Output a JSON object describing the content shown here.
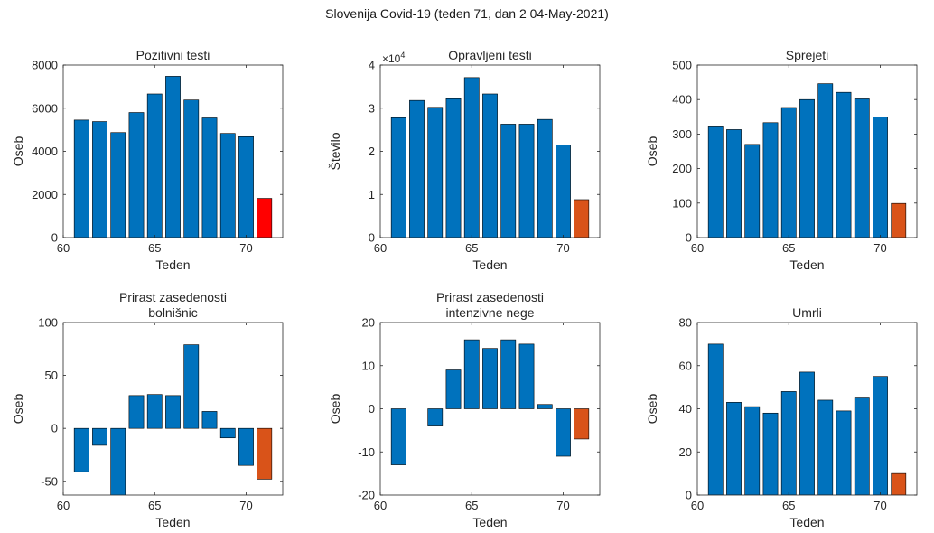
{
  "suptitle": "Slovenija Covid-19 (teden 71, dan 2 04-May-2021)",
  "colors": {
    "blue": "#0072BD",
    "orange": "#D95319",
    "red": "#FF0000",
    "axis": "#262626"
  },
  "chart_data": [
    {
      "type": "bar",
      "title": [
        "Pozitivni testi"
      ],
      "xlabel": "Teden",
      "ylabel": "Oseb",
      "x": [
        61,
        62,
        63,
        64,
        65,
        66,
        67,
        68,
        69,
        70,
        71
      ],
      "values": [
        5450,
        5380,
        4870,
        5800,
        6660,
        7480,
        6380,
        5550,
        4830,
        4680,
        1820
      ],
      "bar_colors": [
        "#0072BD",
        "#0072BD",
        "#0072BD",
        "#0072BD",
        "#0072BD",
        "#0072BD",
        "#0072BD",
        "#0072BD",
        "#0072BD",
        "#0072BD",
        "#FF0000"
      ],
      "xlim": [
        60,
        72
      ],
      "ylim": [
        0,
        8000
      ],
      "xticks": [
        60,
        65,
        70
      ],
      "yticks": [
        0,
        2000,
        4000,
        6000,
        8000
      ]
    },
    {
      "type": "bar",
      "title": [
        "Opravljeni testi"
      ],
      "xlabel": "Teden",
      "ylabel": "Število",
      "exponent": "10",
      "exponent_power": "4",
      "x": [
        61,
        62,
        63,
        64,
        65,
        66,
        67,
        68,
        69,
        70,
        71
      ],
      "values": [
        2.78,
        3.18,
        3.02,
        3.22,
        3.71,
        3.33,
        2.63,
        2.63,
        2.74,
        2.15,
        0.88
      ],
      "bar_colors": [
        "#0072BD",
        "#0072BD",
        "#0072BD",
        "#0072BD",
        "#0072BD",
        "#0072BD",
        "#0072BD",
        "#0072BD",
        "#0072BD",
        "#0072BD",
        "#D95319"
      ],
      "xlim": [
        60,
        72
      ],
      "ylim": [
        0,
        4
      ],
      "xticks": [
        60,
        65,
        70
      ],
      "yticks": [
        0,
        1,
        2,
        3,
        4
      ]
    },
    {
      "type": "bar",
      "title": [
        "Sprejeti"
      ],
      "xlabel": "Teden",
      "ylabel": "Oseb",
      "x": [
        61,
        62,
        63,
        64,
        65,
        66,
        67,
        68,
        69,
        70,
        71
      ],
      "values": [
        321,
        313,
        270,
        333,
        377,
        400,
        446,
        421,
        402,
        349,
        99
      ],
      "bar_colors": [
        "#0072BD",
        "#0072BD",
        "#0072BD",
        "#0072BD",
        "#0072BD",
        "#0072BD",
        "#0072BD",
        "#0072BD",
        "#0072BD",
        "#0072BD",
        "#D95319"
      ],
      "xlim": [
        60,
        72
      ],
      "ylim": [
        0,
        500
      ],
      "xticks": [
        60,
        65,
        70
      ],
      "yticks": [
        0,
        100,
        200,
        300,
        400,
        500
      ]
    },
    {
      "type": "bar",
      "title": [
        "Prirast zasedenosti",
        "bolnišnic"
      ],
      "xlabel": "Teden",
      "ylabel": "Oseb",
      "x": [
        61,
        62,
        63,
        64,
        65,
        66,
        67,
        68,
        69,
        70,
        71
      ],
      "values": [
        -41,
        -16,
        -68,
        31,
        32,
        31,
        79,
        16,
        -9,
        -35,
        -48
      ],
      "bar_colors": [
        "#0072BD",
        "#0072BD",
        "#0072BD",
        "#0072BD",
        "#0072BD",
        "#0072BD",
        "#0072BD",
        "#0072BD",
        "#0072BD",
        "#0072BD",
        "#D95319"
      ],
      "xlim": [
        60,
        72
      ],
      "ylim": [
        -63,
        100
      ],
      "xticks": [
        60,
        65,
        70
      ],
      "yticks": [
        -50,
        0,
        50,
        100
      ]
    },
    {
      "type": "bar",
      "title": [
        "Prirast zasedenosti",
        "intenzivne nege"
      ],
      "xlabel": "Teden",
      "ylabel": "Oseb",
      "x": [
        61,
        62,
        63,
        64,
        65,
        66,
        67,
        68,
        69,
        70,
        71
      ],
      "values": [
        -13,
        0,
        -4,
        9,
        16,
        14,
        16,
        15,
        1,
        -11,
        -7
      ],
      "bar_colors": [
        "#0072BD",
        "#0072BD",
        "#0072BD",
        "#0072BD",
        "#0072BD",
        "#0072BD",
        "#0072BD",
        "#0072BD",
        "#0072BD",
        "#0072BD",
        "#D95319"
      ],
      "xlim": [
        60,
        72
      ],
      "ylim": [
        -20,
        20
      ],
      "xticks": [
        60,
        65,
        70
      ],
      "yticks": [
        -20,
        -10,
        0,
        10,
        20
      ]
    },
    {
      "type": "bar",
      "title": [
        "Umrli"
      ],
      "xlabel": "Teden",
      "ylabel": "Oseb",
      "x": [
        61,
        62,
        63,
        64,
        65,
        66,
        67,
        68,
        69,
        70,
        71
      ],
      "values": [
        70,
        43,
        41,
        38,
        48,
        57,
        44,
        39,
        45,
        55,
        10
      ],
      "bar_colors": [
        "#0072BD",
        "#0072BD",
        "#0072BD",
        "#0072BD",
        "#0072BD",
        "#0072BD",
        "#0072BD",
        "#0072BD",
        "#0072BD",
        "#0072BD",
        "#D95319"
      ],
      "xlim": [
        60,
        72
      ],
      "ylim": [
        0,
        80
      ],
      "xticks": [
        60,
        65,
        70
      ],
      "yticks": [
        0,
        20,
        40,
        60,
        80
      ]
    }
  ]
}
